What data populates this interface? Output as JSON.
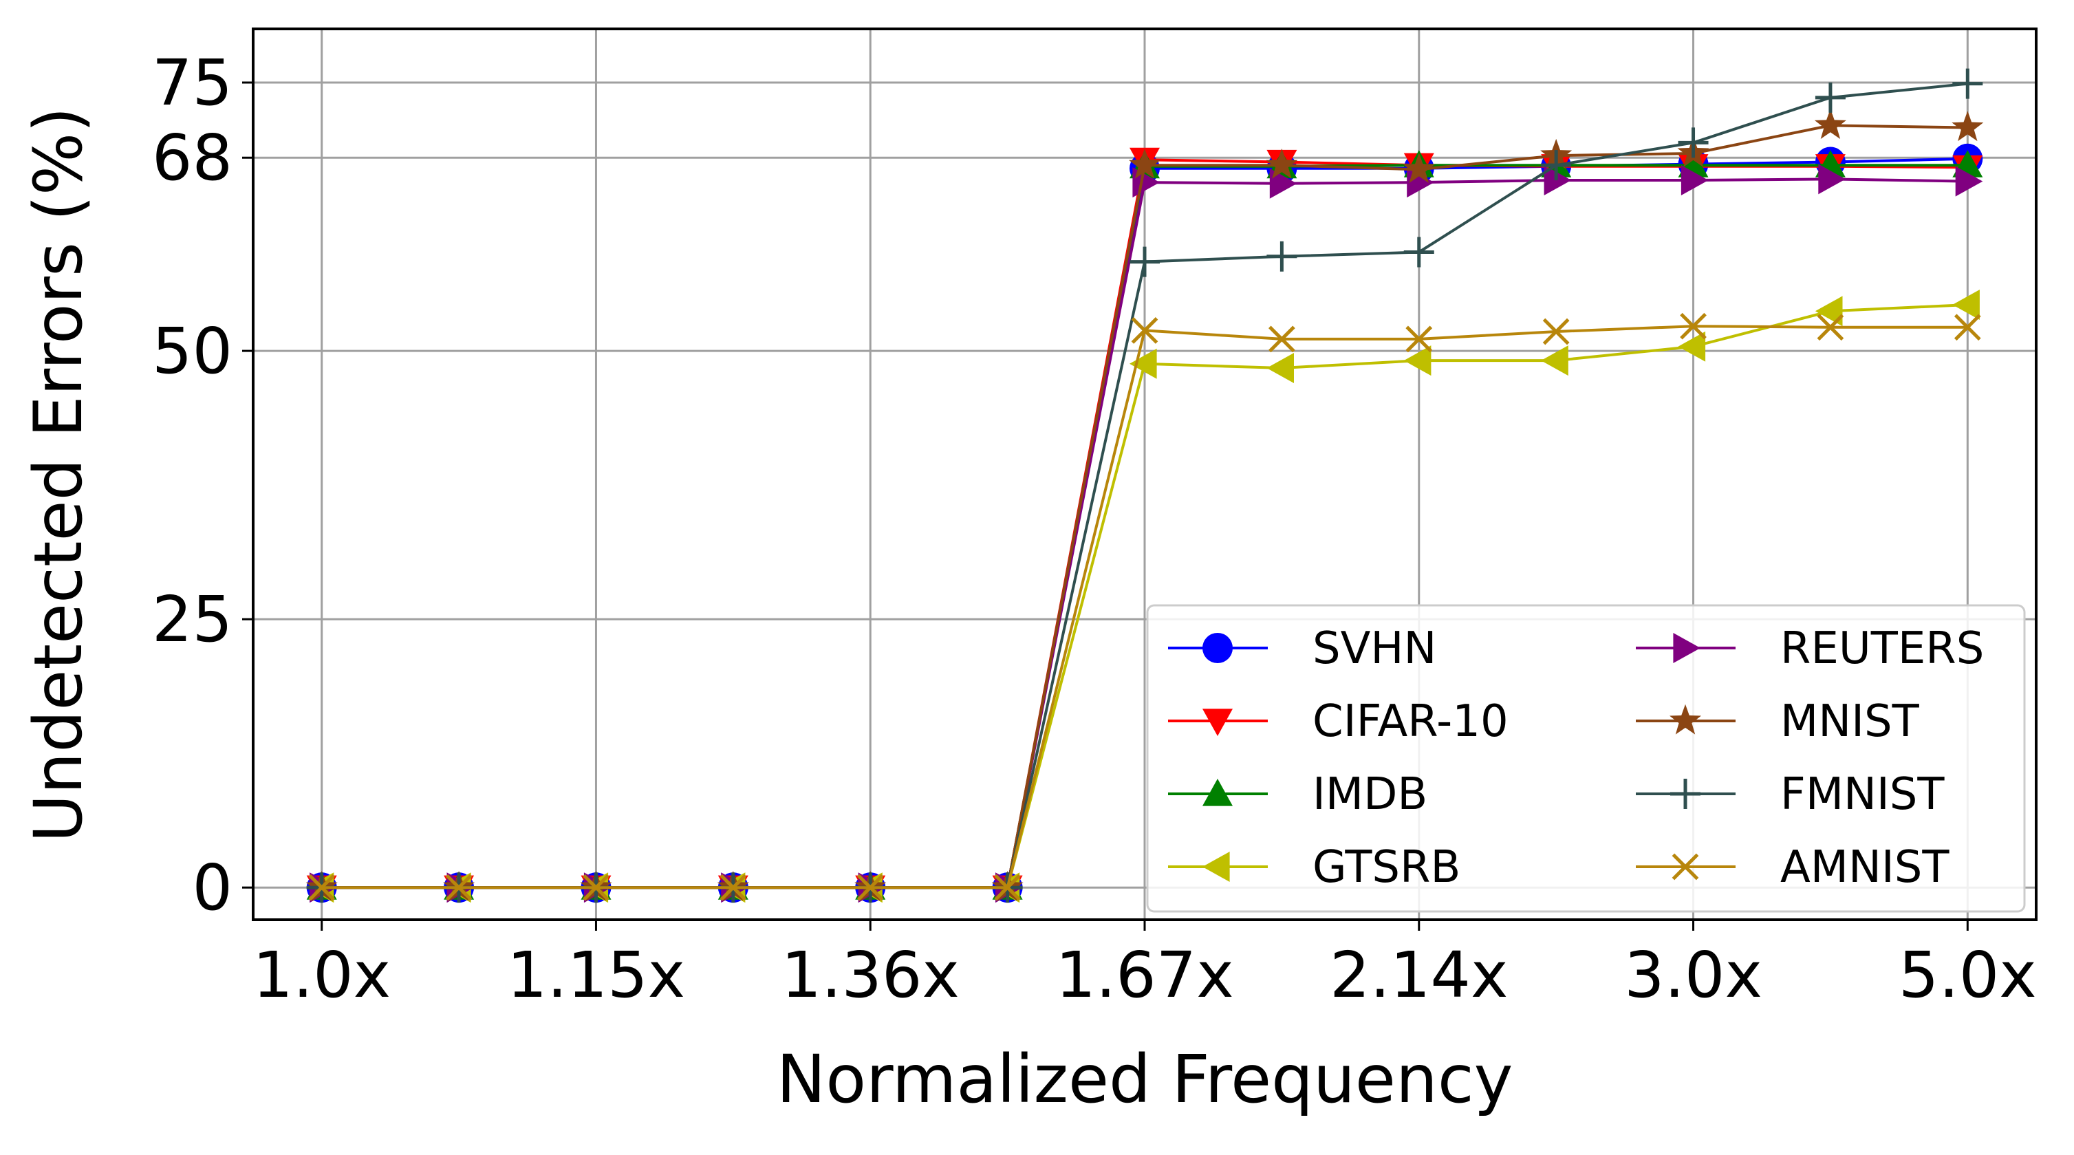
{
  "chart_data": {
    "type": "line",
    "title": "",
    "xlabel": "Normalized Frequency",
    "ylabel": "Undetected Errors (%)",
    "x": [
      0,
      1,
      2,
      3,
      4,
      5,
      6,
      7,
      8,
      9,
      10,
      11,
      12
    ],
    "x_tick_positions": [
      0,
      2,
      4,
      6,
      8,
      10,
      12
    ],
    "x_tick_labels": [
      "1.0x",
      "1.15x",
      "1.36x",
      "1.67x",
      "2.14x",
      "3.0x",
      "5.0x"
    ],
    "xlim": [
      -0.5,
      12.5
    ],
    "ylim": [
      -3,
      80
    ],
    "y_ticks": [
      0,
      25,
      50,
      68,
      75
    ],
    "y_tick_labels": [
      "0",
      "25",
      "50",
      "68",
      "75"
    ],
    "grid": true,
    "legend_position": "lower-right",
    "legend_columns": 2,
    "series": [
      {
        "name": "SVHN",
        "color": "#0000ff",
        "marker": "circle",
        "values": [
          0,
          0,
          0,
          0,
          0,
          0,
          67.0,
          67.0,
          67.0,
          67.2,
          67.4,
          67.6,
          67.9
        ]
      },
      {
        "name": "CIFAR-10",
        "color": "#ff0000",
        "marker": "triangle-down",
        "values": [
          0,
          0,
          0,
          0,
          0,
          0,
          67.8,
          67.6,
          67.3,
          67.2,
          67.2,
          67.2,
          67.1
        ]
      },
      {
        "name": "IMDB",
        "color": "#008000",
        "marker": "triangle-up",
        "values": [
          0,
          0,
          0,
          0,
          0,
          0,
          67.2,
          67.2,
          67.3,
          67.3,
          67.3,
          67.3,
          67.3
        ]
      },
      {
        "name": "GTSRB",
        "color": "#bfbf00",
        "marker": "triangle-left",
        "values": [
          0,
          0,
          0,
          0,
          0,
          0,
          48.8,
          48.4,
          49.1,
          49.1,
          50.4,
          53.7,
          54.3
        ]
      },
      {
        "name": "REUTERS",
        "color": "#800080",
        "marker": "triangle-right",
        "values": [
          0,
          0,
          0,
          0,
          0,
          0,
          65.7,
          65.6,
          65.7,
          65.9,
          65.9,
          66.0,
          65.8
        ]
      },
      {
        "name": "MNIST",
        "color": "#8b4513",
        "marker": "star",
        "values": [
          0,
          0,
          0,
          0,
          0,
          0,
          67.3,
          67.3,
          66.9,
          68.2,
          68.4,
          71.0,
          70.8
        ]
      },
      {
        "name": "FMNIST",
        "color": "#2f4f4f",
        "marker": "plus",
        "values": [
          0,
          0,
          0,
          0,
          0,
          0,
          58.3,
          58.8,
          59.2,
          67.3,
          69.4,
          73.6,
          74.9
        ]
      },
      {
        "name": "AMNIST",
        "color": "#b8860b",
        "marker": "x",
        "values": [
          0,
          0,
          0,
          0,
          0,
          0,
          51.9,
          51.1,
          51.1,
          51.8,
          52.3,
          52.2,
          52.2
        ]
      }
    ]
  }
}
